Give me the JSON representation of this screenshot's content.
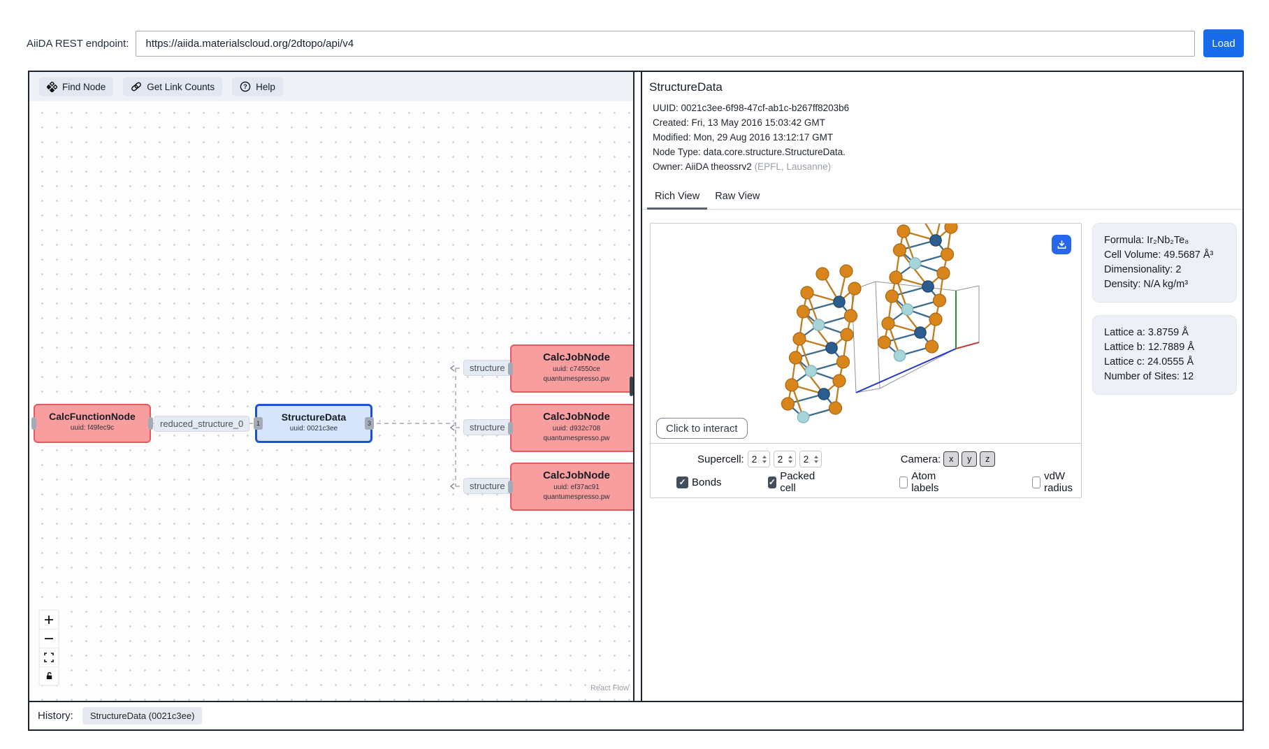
{
  "topbar": {
    "endpoint_label": "AiiDA REST endpoint:",
    "endpoint_value": "https://aiida.materialscloud.org/2dtopo/api/v4",
    "load_label": "Load"
  },
  "graph": {
    "toolbar": {
      "find_node": "Find Node",
      "get_link_counts": "Get Link Counts",
      "help": "Help"
    },
    "nodes": {
      "calc_function": {
        "title": "CalcFunctionNode",
        "uuid": "uuid: f49fec9c"
      },
      "structure_data": {
        "title": "StructureData",
        "uuid": "uuid: 0021c3ee",
        "in_badge": "1",
        "out_badge": "3"
      },
      "calc_jobs": [
        {
          "title": "CalcJobNode",
          "uuid": "uuid: c74550ce",
          "subtitle": "quantumespresso.pw"
        },
        {
          "title": "CalcJobNode",
          "uuid": "uuid: d932c708",
          "subtitle": "quantumespresso.pw"
        },
        {
          "title": "CalcJobNode",
          "uuid": "uuid: ef37ac91",
          "subtitle": "quantumespresso.pw"
        }
      ]
    },
    "edge_labels": {
      "reduced_structure": "reduced_structure_0",
      "structure": "structure"
    },
    "attribution": "React Flow"
  },
  "details": {
    "title": "StructureData",
    "meta": [
      "UUID: 0021c3ee-6f98-47cf-ab1c-b267ff8203b6",
      "Created: Fri, 13 May 2016 15:03:42 GMT",
      "Modified: Mon, 29 Aug 2016 13:12:17 GMT",
      "Node Type: data.core.structure.StructureData."
    ],
    "owner_prefix": "Owner: AiiDA theossrv2 ",
    "owner_suffix": "(EPFL, Lausanne)",
    "tabs": [
      "Rich View",
      "Raw View"
    ]
  },
  "viewer": {
    "interact_label": "Click to interact",
    "supercell_label": "Supercell:",
    "supercell_values": [
      "2",
      "2",
      "2"
    ],
    "camera_label": "Camera:",
    "camera_buttons": [
      "x",
      "y",
      "z"
    ],
    "checkboxes": [
      {
        "label": "Bonds",
        "checked": true
      },
      {
        "label": "Packed cell",
        "checked": true
      },
      {
        "label": "Atom labels",
        "checked": false
      },
      {
        "label": "vdW radius",
        "checked": false
      }
    ],
    "structure_colors": {
      "te": "#d8861b",
      "te_stroke": "#a96712",
      "metal_dark": "#2c5d8f",
      "metal_dark_stroke": "#1d4269",
      "metal_light": "#a7d4d9",
      "metal_light_stroke": "#7fb3ba",
      "bond_orange": "#c07d20",
      "bond_blue": "#3c6b92",
      "cell_a": "#2238cc",
      "cell_b": "#2f8f3a",
      "cell_c": "#c23b3b"
    }
  },
  "info": {
    "formula_card": [
      "Formula: Ir₂Nb₂Te₈",
      "Cell Volume: 49.5687 Å³",
      "Dimensionality: 2",
      "Density: N/A kg/m³"
    ],
    "lattice_card": [
      "Lattice a: 3.8759 Å",
      "Lattice b: 12.7889 Å",
      "Lattice c: 24.0555 Å",
      "Number of Sites: 12"
    ]
  },
  "history": {
    "label": "History:",
    "chip": "StructureData (0021c3ee)"
  }
}
